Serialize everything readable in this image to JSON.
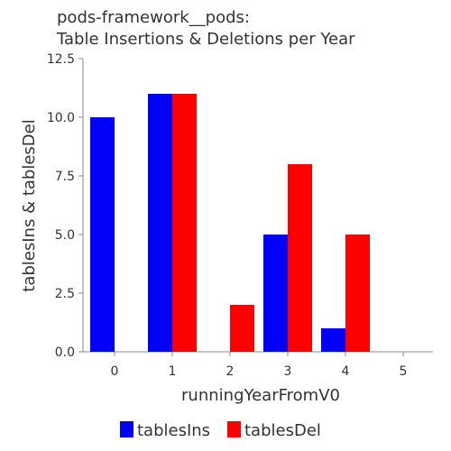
{
  "chart_data": {
    "type": "bar",
    "title_lines": [
      "pods-framework__pods:",
      "Table Insertions & Deletions per Year"
    ],
    "xlabel": "runningYearFromV0",
    "ylabel": "tablesIns & tablesDel",
    "categories": [
      "0",
      "1",
      "2",
      "3",
      "4",
      "5"
    ],
    "series": [
      {
        "name": "tablesIns",
        "color": "#0000ff",
        "values": [
          10,
          11,
          0,
          5,
          1,
          0
        ]
      },
      {
        "name": "tablesDel",
        "color": "#ff0000",
        "values": [
          0,
          11,
          2,
          8,
          5,
          0
        ]
      }
    ],
    "ylim": [
      0,
      12.5
    ],
    "yticks": [
      "0.0",
      "2.5",
      "5.0",
      "7.5",
      "10.0",
      "12.5"
    ],
    "ytick_values": [
      0,
      2.5,
      5,
      7.5,
      10,
      12.5
    ],
    "grid": false,
    "legend_position": "bottom"
  }
}
